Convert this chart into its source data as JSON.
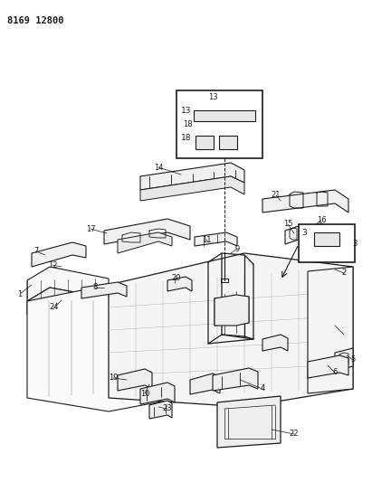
{
  "title_code": "8169 12800",
  "bg_color": "#ffffff",
  "line_color": "#1a1a1a",
  "fig_w": 4.11,
  "fig_h": 5.33,
  "dpi": 100
}
